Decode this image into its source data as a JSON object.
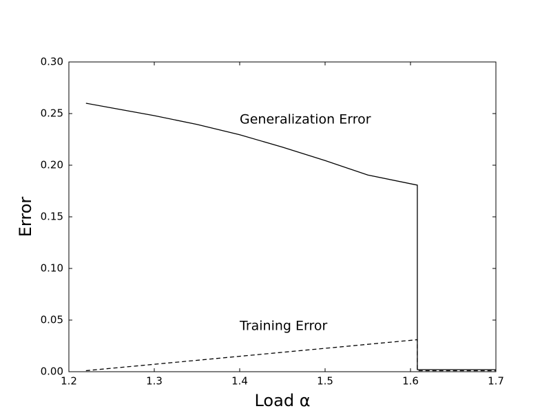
{
  "chart_data": {
    "type": "line",
    "xlabel": "Load α",
    "ylabel": "Error",
    "xlim": [
      1.2,
      1.7
    ],
    "ylim": [
      0,
      0.3
    ],
    "xticks": [
      1.2,
      1.3,
      1.4,
      1.5,
      1.6,
      1.7
    ],
    "yticks": [
      {
        "value": 0,
        "label": "0.00"
      },
      0.05,
      {
        "value": 0.1,
        "label": "0.10"
      },
      0.15,
      {
        "value": 0.2,
        "label": "0.20"
      },
      0.25,
      {
        "value": 0.3,
        "label": "0.30"
      }
    ],
    "series": [
      {
        "color": "#000000",
        "style": "solid",
        "x": [
          1.22,
          1.25,
          1.3,
          1.35,
          1.4,
          1.45,
          1.5,
          1.55,
          1.608,
          1.608,
          1.7
        ],
        "values": [
          0.26,
          0.2555,
          0.248,
          0.2395,
          0.2295,
          0.2175,
          0.2045,
          0.1905,
          0.1807,
          0.002,
          0.002
        ]
      },
      {
        "color": "#000000",
        "style": "dashed",
        "x": [
          1.22,
          1.608,
          1.608,
          1.7
        ],
        "values": [
          0.001,
          0.031,
          0.001,
          0.001
        ]
      }
    ],
    "annotations": [
      {
        "text": "Generalization Error",
        "x": 1.4,
        "y": 0.244
      },
      {
        "text": "Training Error",
        "x": 1.4,
        "y": 0.044
      }
    ]
  }
}
